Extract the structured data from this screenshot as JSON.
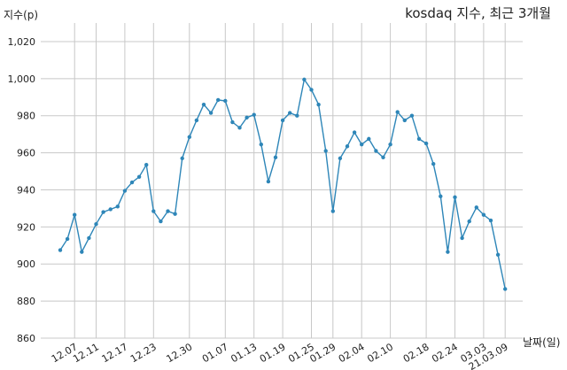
{
  "chart_data": {
    "type": "line",
    "title": "kosdaq 지수, 최근 3개월",
    "ylabel": "지수(p)",
    "xlabel": "날짜(일)",
    "ylim": [
      860,
      1030
    ],
    "yticks": [
      860,
      880,
      900,
      920,
      940,
      960,
      980,
      1000,
      1020
    ],
    "ytick_labels": [
      "860",
      "880",
      "900",
      "920",
      "940",
      "960",
      "980",
      "1,000",
      "1,020"
    ],
    "grid": true,
    "line_color": "#2e86b8",
    "xtick_labels": [
      "12.07",
      "12.11",
      "12.17",
      "12.23",
      "12.30",
      "01.07",
      "01.13",
      "01.19",
      "01.25",
      "01.29",
      "02.04",
      "02.10",
      "02.18",
      "02.24",
      "03.03",
      "21.03.09"
    ],
    "xtick_index": [
      2,
      5,
      9,
      13,
      18,
      23,
      27,
      31,
      35,
      38,
      42,
      46,
      51,
      55,
      59,
      62
    ],
    "values": [
      907.5,
      913.5,
      926.5,
      906.5,
      914,
      921.5,
      928,
      929.5,
      931,
      939.5,
      944,
      947,
      953.5,
      928.5,
      923,
      928.5,
      927,
      957,
      968.5,
      977.5,
      986,
      981.5,
      988.5,
      988,
      976.5,
      973.5,
      979,
      980.5,
      964.5,
      944.5,
      957.5,
      977.5,
      981.5,
      980,
      999.5,
      994,
      986,
      961,
      928.5,
      957,
      963.5,
      971,
      964.5,
      967.5,
      961,
      957.5,
      964.5,
      982,
      977.5,
      980,
      967.5,
      965,
      954,
      936.5,
      906.5,
      936,
      914,
      923,
      930.5,
      926.5,
      923.5,
      905,
      886.5
    ]
  }
}
